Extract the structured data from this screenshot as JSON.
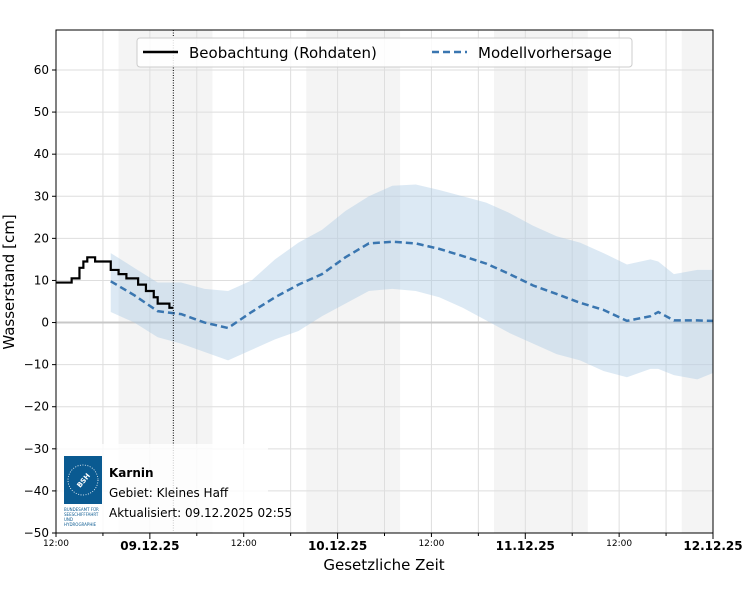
{
  "chart_data": {
    "type": "line",
    "xlabel": "Gesetzliche Zeit",
    "ylabel": "Wasserstand [cm]",
    "ylim": [
      -50,
      69.5
    ],
    "xlim_hours_from": "08.12.2025 12:00",
    "xlim": [
      "08.12.2025 12:00",
      "12.12.2025 00:00"
    ],
    "y_ticks": [
      -50,
      -40,
      -30,
      -20,
      -10,
      0,
      10,
      20,
      30,
      40,
      50,
      60
    ],
    "y_tick_labels": [
      "−50",
      "−40",
      "−30",
      "−20",
      "−10",
      "0",
      "10",
      "20",
      "30",
      "40",
      "50",
      "60"
    ],
    "x_ticks": [
      {
        "h": 0,
        "label": "12:00",
        "major": false
      },
      {
        "h": 12,
        "label": "09.12.25",
        "major": true
      },
      {
        "h": 24,
        "label": "12:00",
        "major": false
      },
      {
        "h": 36,
        "label": "10.12.25",
        "major": true
      },
      {
        "h": 48,
        "label": "12:00",
        "major": false
      },
      {
        "h": 60,
        "label": "11.12.25",
        "major": true
      },
      {
        "h": 72,
        "label": "12:00",
        "major": false
      },
      {
        "h": 84,
        "label": "12.12.25",
        "major": true
      }
    ],
    "grid": true,
    "night_bands_hours": [
      [
        8,
        20
      ],
      [
        32,
        44
      ],
      [
        56,
        68
      ],
      [
        80,
        84
      ]
    ],
    "now_line_hour": 15,
    "legend_placement": "top-center",
    "series": [
      {
        "name": "Beobachtung (Rohdaten)",
        "style": "step-solid",
        "color": "#000000",
        "x_hours": [
          0,
          1,
          2,
          3,
          3.5,
          4,
          5,
          6,
          7,
          8,
          9,
          10,
          10.5,
          11,
          11.5,
          12,
          12.5,
          13,
          14,
          14.5,
          15
        ],
        "values": [
          9.5,
          9.5,
          10.5,
          13,
          14.5,
          15.5,
          14.5,
          14.5,
          12.5,
          11.5,
          10.5,
          10.5,
          9,
          9,
          7.5,
          7.5,
          6,
          4.5,
          4.5,
          3.5,
          3.5
        ]
      },
      {
        "name": "Modellvorhersage",
        "style": "dashed",
        "color": "#3a76b0",
        "band_color": "#a8c8e4",
        "x_hours": [
          7,
          10,
          13,
          16,
          19,
          22,
          25,
          28,
          31,
          34,
          37,
          40,
          43,
          46,
          49,
          52,
          55,
          58,
          61,
          64,
          67,
          70,
          73,
          76,
          77,
          79,
          82,
          84
        ],
        "values": [
          9.8,
          6.5,
          2.7,
          2,
          0,
          -1.3,
          2.5,
          6,
          9,
          11.5,
          15.5,
          18.8,
          19.2,
          18.8,
          17.5,
          15.8,
          14,
          11.5,
          8.8,
          6.8,
          4.7,
          3,
          0.4,
          1.5,
          2.5,
          0.5,
          0.5,
          0.4
        ],
        "upper": [
          16.5,
          13,
          9.5,
          9.5,
          8,
          7.5,
          10,
          15,
          19,
          22,
          26.5,
          30,
          32.5,
          32.8,
          31.5,
          30,
          28.5,
          26,
          23,
          20.5,
          19,
          16.5,
          13.8,
          15,
          14.5,
          11.5,
          12.5,
          12.5
        ],
        "lower": [
          2.5,
          0,
          -3.5,
          -5,
          -7,
          -9,
          -6.5,
          -4,
          -2,
          1.5,
          4.5,
          7.5,
          8,
          7.5,
          6,
          3.5,
          0.5,
          -2.5,
          -5,
          -7.5,
          -9,
          -11.5,
          -13,
          -11,
          -11,
          -12.5,
          -13.5,
          -12
        ]
      }
    ]
  },
  "info": {
    "station": "Karnin",
    "area": "Gebiet: Kleines Haff",
    "updated": "Aktualisiert: 09.12.2025 02:55",
    "logo_text": "BSH",
    "logo_caption": "BUNDESAMT FÜR SEESCHIFFFAHRT UND HYDROGRAPHIE",
    "logo_color": "#0a5a91"
  }
}
